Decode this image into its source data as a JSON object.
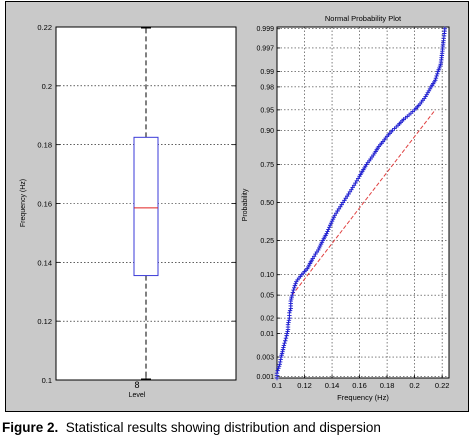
{
  "chart_data": [
    {
      "type": "box",
      "title": "",
      "xlabel": "Level",
      "ylabel": "Frequency (Hz)",
      "categories": [
        "8"
      ],
      "ylim": [
        0.1,
        0.22
      ],
      "yticks": [
        0.1,
        0.12,
        0.14,
        0.16,
        0.18,
        0.2,
        0.22
      ],
      "ytick_labels": [
        "0.1",
        "0.12",
        "0.14",
        "0.16",
        "0.18",
        "0.2",
        "0.22"
      ],
      "grid": true,
      "box": {
        "whisker_low": 0.1,
        "q1": 0.1355,
        "median": 0.1585,
        "q3": 0.1825,
        "whisker_high": 0.22
      },
      "colors": {
        "box": "#3a3ad8",
        "median": "#e02020",
        "whisker": "#000000"
      }
    },
    {
      "type": "scatter",
      "title": "Normal Probability Plot",
      "xlabel": "Frequency (Hz)",
      "ylabel": "Probability",
      "xlim": [
        0.1,
        0.225
      ],
      "xticks": [
        0.1,
        0.12,
        0.14,
        0.16,
        0.18,
        0.2,
        0.22
      ],
      "xtick_labels": [
        "0.1",
        "0.12",
        "0.14",
        "0.16",
        "0.18",
        "0.2",
        "0.22"
      ],
      "yticks": [
        0.001,
        0.003,
        0.01,
        0.02,
        0.05,
        0.1,
        0.25,
        0.5,
        0.75,
        0.9,
        0.95,
        0.98,
        0.99,
        0.997,
        0.999
      ],
      "ytick_labels": [
        "0.001",
        "0.003",
        "0.01",
        "0.02",
        "0.05",
        "0.10",
        "0.25",
        "0.50",
        "0.75",
        "0.90",
        "0.95",
        "0.98",
        "0.99",
        "0.997",
        "0.999"
      ],
      "grid": true,
      "reference_line": {
        "x": [
          0.111,
          0.215
        ],
        "y": [
          0.05,
          0.95
        ]
      },
      "points": [
        [
          0.1,
          0.0009
        ],
        [
          0.1,
          0.0012
        ],
        [
          0.101,
          0.0016
        ],
        [
          0.102,
          0.002
        ],
        [
          0.103,
          0.003
        ],
        [
          0.104,
          0.004
        ],
        [
          0.105,
          0.0055
        ],
        [
          0.106,
          0.007
        ],
        [
          0.107,
          0.009
        ],
        [
          0.108,
          0.012
        ],
        [
          0.108,
          0.015
        ],
        [
          0.109,
          0.02
        ],
        [
          0.109,
          0.025
        ],
        [
          0.11,
          0.03
        ],
        [
          0.11,
          0.04
        ],
        [
          0.111,
          0.05
        ],
        [
          0.112,
          0.06
        ],
        [
          0.113,
          0.07
        ],
        [
          0.114,
          0.08
        ],
        [
          0.116,
          0.09
        ],
        [
          0.118,
          0.1
        ],
        [
          0.12,
          0.11
        ],
        [
          0.122,
          0.12
        ],
        [
          0.124,
          0.14
        ],
        [
          0.126,
          0.16
        ],
        [
          0.128,
          0.18
        ],
        [
          0.13,
          0.2
        ],
        [
          0.132,
          0.23
        ],
        [
          0.134,
          0.26
        ],
        [
          0.136,
          0.29
        ],
        [
          0.138,
          0.33
        ],
        [
          0.14,
          0.37
        ],
        [
          0.142,
          0.41
        ],
        [
          0.144,
          0.44
        ],
        [
          0.146,
          0.47
        ],
        [
          0.148,
          0.5
        ],
        [
          0.15,
          0.53
        ],
        [
          0.152,
          0.56
        ],
        [
          0.154,
          0.59
        ],
        [
          0.156,
          0.62
        ],
        [
          0.158,
          0.65
        ],
        [
          0.16,
          0.68
        ],
        [
          0.162,
          0.71
        ],
        [
          0.165,
          0.75
        ],
        [
          0.168,
          0.78
        ],
        [
          0.171,
          0.81
        ],
        [
          0.174,
          0.84
        ],
        [
          0.177,
          0.86
        ],
        [
          0.18,
          0.88
        ],
        [
          0.184,
          0.9
        ],
        [
          0.188,
          0.915
        ],
        [
          0.192,
          0.93
        ],
        [
          0.196,
          0.94
        ],
        [
          0.2,
          0.95
        ],
        [
          0.204,
          0.96
        ],
        [
          0.208,
          0.97
        ],
        [
          0.212,
          0.98
        ],
        [
          0.215,
          0.985
        ],
        [
          0.217,
          0.99
        ],
        [
          0.219,
          0.993
        ],
        [
          0.22,
          0.996
        ],
        [
          0.221,
          0.998
        ],
        [
          0.222,
          0.999
        ]
      ],
      "colors": {
        "marker": "#1f1fd0",
        "reference_line": "#e04040"
      }
    }
  ],
  "caption": {
    "label": "Figure 2.",
    "text": "Statistical results showing distribution and dispersion"
  }
}
